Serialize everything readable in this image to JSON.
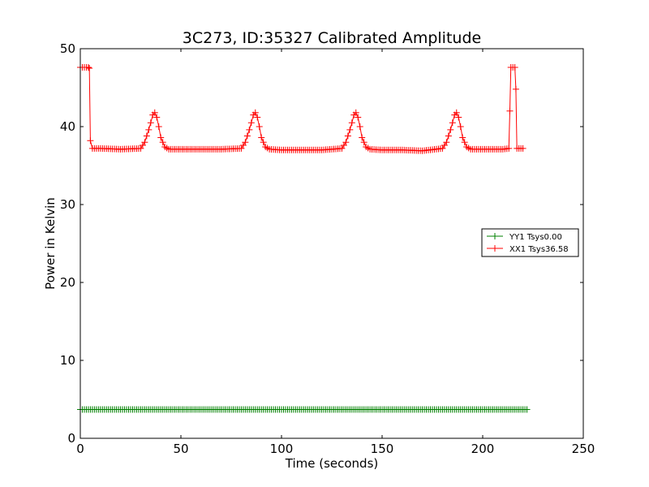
{
  "chart_data": {
    "type": "line",
    "title": "3C273, ID:35327 Calibrated Amplitude",
    "xlabel": "Time (seconds)",
    "ylabel": "Power in Kelvin",
    "xlim": [
      0,
      250
    ],
    "ylim": [
      0,
      50
    ],
    "xticks": [
      "0",
      "50",
      "100",
      "150",
      "200",
      "250"
    ],
    "yticks": [
      "0",
      "10",
      "20",
      "30",
      "40",
      "50"
    ],
    "grid": false,
    "legend_position": "center-right",
    "marker": "+",
    "series": [
      {
        "name": "YY1 Tsys0.00",
        "color": "#008000",
        "x": [
          0,
          2,
          4,
          6,
          8,
          10,
          20,
          40,
          60,
          80,
          100,
          120,
          140,
          160,
          180,
          200,
          212,
          214,
          216,
          218,
          220,
          222
        ],
        "y": [
          3.7,
          3.7,
          3.7,
          3.7,
          3.7,
          3.7,
          3.7,
          3.7,
          3.7,
          3.7,
          3.7,
          3.7,
          3.7,
          3.7,
          3.7,
          3.7,
          3.7,
          3.7,
          3.7,
          3.7,
          3.7,
          3.7
        ]
      },
      {
        "name": "XX1 Tsys36.58",
        "color": "#ff0000",
        "x": [
          0,
          2,
          4,
          4.5,
          5,
          6,
          8,
          10,
          20,
          30,
          32,
          34,
          35,
          36,
          37,
          38,
          39,
          40,
          42,
          44,
          50,
          60,
          70,
          80,
          82,
          84,
          85,
          86,
          87,
          88,
          89,
          90,
          92,
          94,
          100,
          110,
          120,
          130,
          132,
          134,
          135,
          136,
          137,
          138,
          139,
          140,
          142,
          144,
          150,
          160,
          170,
          180,
          182,
          184,
          185,
          186,
          187,
          188,
          189,
          190,
          192,
          194,
          200,
          210,
          213,
          213.5,
          214,
          215,
          216,
          216.5,
          217,
          218,
          219,
          220
        ],
        "y": [
          47.6,
          47.6,
          47.6,
          47.5,
          38.2,
          37.2,
          37.2,
          37.2,
          37.1,
          37.2,
          38.0,
          39.6,
          40.5,
          41.5,
          41.8,
          41.2,
          40.0,
          38.6,
          37.4,
          37.1,
          37.1,
          37.1,
          37.1,
          37.2,
          38.0,
          39.6,
          40.5,
          41.5,
          41.8,
          41.2,
          40.0,
          38.6,
          37.4,
          37.1,
          37.0,
          37.0,
          37.0,
          37.2,
          38.0,
          39.6,
          40.5,
          41.5,
          41.8,
          41.2,
          40.0,
          38.6,
          37.4,
          37.1,
          37.0,
          37.0,
          36.9,
          37.2,
          38.0,
          39.6,
          40.5,
          41.5,
          41.8,
          41.2,
          40.0,
          38.6,
          37.4,
          37.1,
          37.1,
          37.1,
          37.2,
          42.0,
          47.6,
          47.6,
          47.6,
          44.8,
          37.2,
          37.2,
          37.2,
          37.2
        ]
      }
    ]
  }
}
